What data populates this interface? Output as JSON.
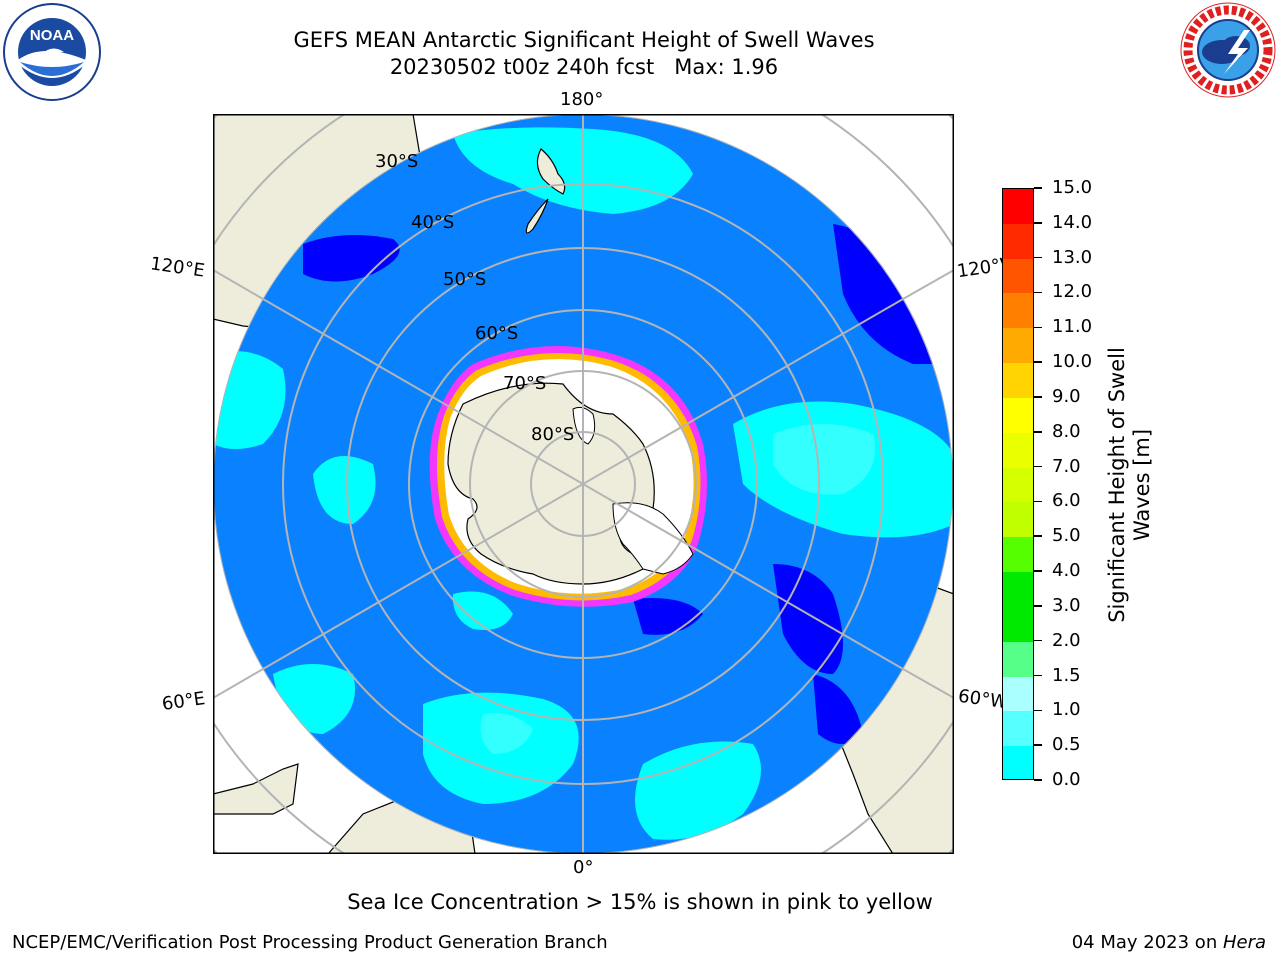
{
  "title": {
    "line1": "GEFS MEAN Antarctic Significant Height of Swell Waves",
    "line2": "20230502 t00z 240h fcst   Max: 1.96"
  },
  "logos": {
    "left": {
      "text": "NOAA",
      "ring_text": "NATIONAL OCEANIC AND ATMOSPHERIC ADMINISTRATION",
      "bottom_text": "U.S. DEPARTMENT OF COMMERCE"
    },
    "right": {
      "ring_text": "NATIONAL WEATHER SERVICE"
    }
  },
  "map": {
    "projection": "south-polar-stereographic",
    "lon_labels": {
      "top": "180°",
      "bottom": "0°",
      "left_upper": "120°E",
      "right_upper": "120°W",
      "left_lower": "60°E",
      "right_lower": "60°W"
    },
    "lat_labels": [
      "30°S",
      "40°S",
      "50°S",
      "60°S",
      "70°S",
      "80°S"
    ],
    "colors": {
      "land": "#eeeddc",
      "ocean_base": "#0a82ff",
      "swell_low": "#0000ff",
      "swell_mid": "#00ffff",
      "swell_high": "#33ffff",
      "ice_edge": "#ff33ff",
      "ice_edge2": "#ffbb00",
      "grid": "#b4b4b4",
      "coast": "#000000"
    }
  },
  "colorbar": {
    "label": "Significant Height of Swell Waves [m]",
    "label_line1": "Significant Height of Swell",
    "label_line2": "Waves [m]",
    "ticks": [
      "15.0",
      "14.0",
      "13.0",
      "12.0",
      "11.0",
      "10.0",
      "9.0",
      "8.0",
      "7.0",
      "6.0",
      "5.0",
      "4.0",
      "3.0",
      "2.0",
      "1.5",
      "1.0",
      "0.5",
      "0.0"
    ],
    "segment_colors": [
      "#ff0000",
      "#ff2a00",
      "#ff5500",
      "#ff8000",
      "#ffaa00",
      "#ffd400",
      "#ffff00",
      "#eaff00",
      "#d4ff00",
      "#bfff00",
      "#55ff00",
      "#00ea00",
      "#00ea00",
      "#55ff88",
      "#aaffff",
      "#55ffff",
      "#00ffff",
      "#0080ff",
      "#0000ff"
    ]
  },
  "note": "Sea Ice Concentration > 15% is shown in pink to yellow",
  "footer": {
    "left": "NCEP/EMC/Verification Post Processing Product Generation Branch",
    "right_prefix": "04 May 2023 on ",
    "right_machine": "Hera"
  }
}
